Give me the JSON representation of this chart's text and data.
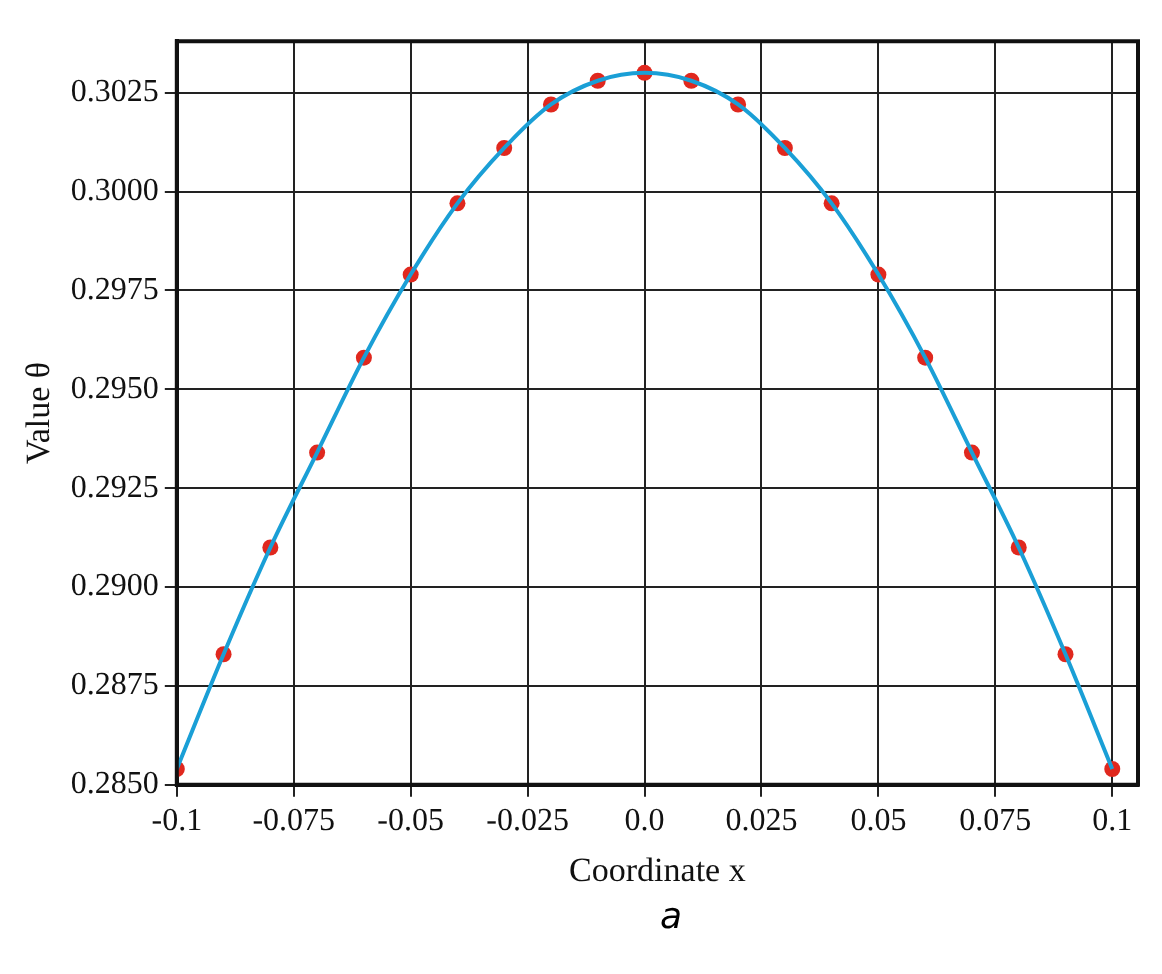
{
  "chart_data": {
    "type": "line",
    "xlabel": "Coordinate x",
    "ylabel": "Value θ",
    "annotations": [
      "a"
    ],
    "xlim": [
      -0.1,
      0.1055
    ],
    "ylim": [
      0.285,
      0.3038
    ],
    "xticks": [
      -0.1,
      -0.075,
      -0.05,
      -0.025,
      {
        "value": 0,
        "label": "0.0"
      },
      0.025,
      0.05,
      0.075,
      0.1
    ],
    "yticks": [
      {
        "value": 0.285,
        "label": "0.2850"
      },
      {
        "value": 0.2875,
        "label": "0.2875"
      },
      {
        "value": 0.29,
        "label": "0.2900"
      },
      {
        "value": 0.2925,
        "label": "0.2925"
      },
      {
        "value": 0.295,
        "label": "0.2950"
      },
      {
        "value": 0.2975,
        "label": "0.2975"
      },
      {
        "value": 0.3,
        "label": "0.3000"
      },
      {
        "value": 0.3025,
        "label": "0.3025"
      }
    ],
    "grid": true,
    "legend": false,
    "series": [
      {
        "type": "line",
        "color": "#1a9fd6",
        "marker": "none",
        "x": [
          -0.1,
          -0.09,
          -0.08,
          -0.07,
          -0.06,
          -0.05,
          -0.04,
          -0.03,
          -0.02,
          -0.01,
          0,
          0.01,
          0.02,
          0.03,
          0.04,
          0.05,
          0.06,
          0.07,
          0.08,
          0.09,
          0.1
        ],
        "values": [
          0.2854,
          0.2883,
          0.291,
          0.2934,
          0.2958,
          0.2979,
          0.2997,
          0.3011,
          0.3022,
          0.3028,
          0.303,
          0.3028,
          0.3022,
          0.3011,
          0.2997,
          0.2979,
          0.2958,
          0.2934,
          0.291,
          0.2883,
          0.2854
        ]
      },
      {
        "type": "scatter",
        "color": "#e0281e",
        "marker": "circle",
        "x": [
          -0.1,
          -0.09,
          -0.08,
          -0.07,
          -0.06,
          -0.05,
          -0.04,
          -0.03,
          -0.02,
          -0.01,
          0,
          0.01,
          0.02,
          0.03,
          0.04,
          0.05,
          0.06,
          0.07,
          0.08,
          0.09,
          0.1
        ],
        "values": [
          0.2854,
          0.2883,
          0.291,
          0.2934,
          0.2958,
          0.2979,
          0.2997,
          0.3011,
          0.3022,
          0.3028,
          0.303,
          0.3028,
          0.3022,
          0.3011,
          0.2997,
          0.2979,
          0.2958,
          0.2934,
          0.291,
          0.2883,
          0.2854
        ]
      }
    ]
  }
}
